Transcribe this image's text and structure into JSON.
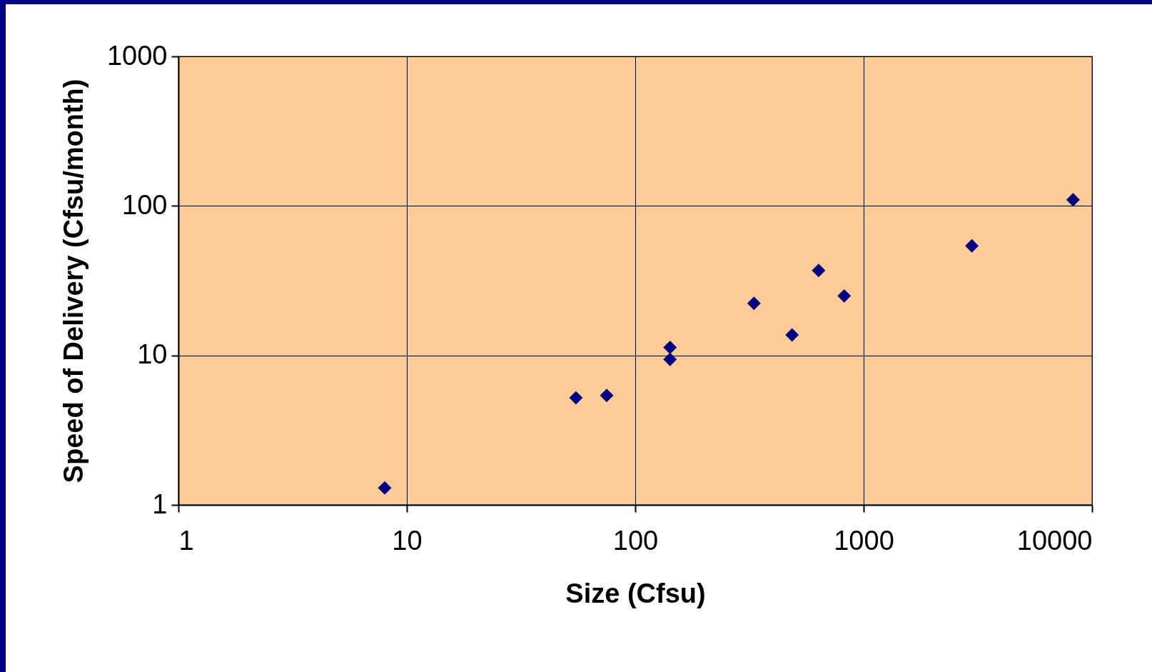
{
  "chart_data": {
    "type": "scatter",
    "xlabel": "Size (Cfsu)",
    "ylabel": "Speed of Delivery (Cfsu/month)",
    "log": "xy",
    "grid": true,
    "marker": "diamond",
    "xlim": [
      1,
      10000
    ],
    "xticks": [
      1,
      10,
      100,
      1000,
      10000
    ],
    "ylim": [
      1,
      1000
    ],
    "yticks": [
      1,
      10,
      100,
      1000
    ],
    "x": [
      8,
      55,
      75,
      142,
      142,
      331,
      486,
      635,
      822,
      2977,
      8260
    ],
    "series": [
      {
        "color": "#000080",
        "values": [
          1.3,
          5.2,
          5.4,
          11.3,
          9.4,
          22.3,
          13.7,
          37,
          25,
          54,
          110
        ]
      }
    ]
  }
}
